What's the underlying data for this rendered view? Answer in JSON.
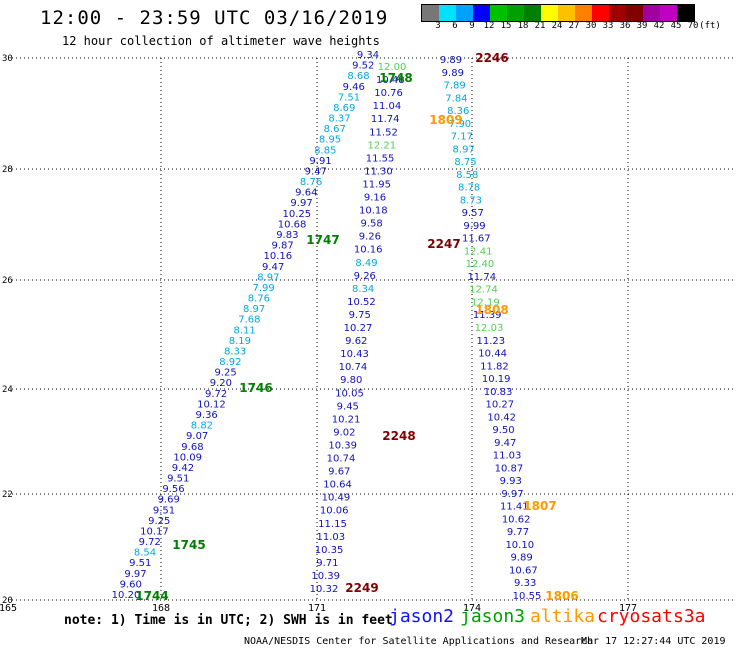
{
  "title": "12:00 - 23:59 UTC 03/16/2019",
  "subtitle": "12 hour collection of altimeter wave heights",
  "colorbar": {
    "colors": [
      "#777777",
      "#00e0ff",
      "#00a0ff",
      "#0000ff",
      "#00c000",
      "#00a000",
      "#008000",
      "#ffff00",
      "#ffc000",
      "#ff8000",
      "#ff0000",
      "#a00000",
      "#800000",
      "#a000a0",
      "#c000c0",
      "#000000"
    ],
    "labels": [
      "3",
      "6",
      "9",
      "12",
      "15",
      "18",
      "21",
      "24",
      "27",
      "30",
      "33",
      "36",
      "39",
      "42",
      "45",
      "70",
      "(ft)"
    ]
  },
  "axes": {
    "lon_labels": [
      "165",
      "168",
      "171",
      "174",
      "177"
    ],
    "lat_labels": [
      "30",
      "28",
      "26",
      "24",
      "22",
      "20"
    ]
  },
  "passes": [
    {
      "time": "1748",
      "color": "#008000"
    },
    {
      "time": "1747",
      "color": "#008000"
    },
    {
      "time": "1746",
      "color": "#008000"
    },
    {
      "time": "1745",
      "color": "#008000"
    },
    {
      "time": "1744",
      "color": "#008000"
    },
    {
      "time": "2246",
      "color": "#800000"
    },
    {
      "time": "2247",
      "color": "#800000"
    },
    {
      "time": "2248",
      "color": "#800000"
    },
    {
      "time": "2249",
      "color": "#800000"
    },
    {
      "time": "1809",
      "color": "#ff9900"
    },
    {
      "time": "1808",
      "color": "#ff9900"
    },
    {
      "time": "1807",
      "color": "#ff9900"
    },
    {
      "time": "1806",
      "color": "#ff9900"
    }
  ],
  "tracks": {
    "jason3_values": [
      "9.34",
      "9.52",
      "8.68",
      "9.46",
      "7.51",
      "8.69",
      "8.37",
      "8.67",
      "8.95",
      "8.85",
      "9.91",
      "9.47",
      "8.76",
      "9.64",
      "9.97",
      "10.25",
      "10.68",
      "9.83",
      "9.87",
      "10.16",
      "9.47",
      "8.97",
      "7.99",
      "8.76",
      "8.97",
      "7.68",
      "8.11",
      "8.19",
      "8.33",
      "8.92",
      "9.25",
      "9.20",
      "9.72",
      "10.12",
      "9.36",
      "8.82",
      "9.07",
      "9.68",
      "10.09",
      "9.42",
      "9.51",
      "9.56",
      "9.69",
      "9.51",
      "9.25",
      "10.17",
      "9.72",
      "8.54",
      "9.51",
      "9.97",
      "9.60",
      "10.20"
    ],
    "s3a_a_values": [
      "12.00",
      "10.48",
      "10.76",
      "11.04",
      "11.74",
      "11.52",
      "12.21",
      "11.55",
      "11.30",
      "11.95",
      "9.16",
      "10.18",
      "9.58",
      "9.26",
      "10.16",
      "8.49",
      "9.26",
      "8.34",
      "10.52",
      "9.75",
      "10.27",
      "9.62",
      "10.43",
      "10.74",
      "9.80",
      "10.05",
      "9.45",
      "10.21",
      "9.02",
      "10.39",
      "10.74",
      "9.67",
      "10.64",
      "10.49",
      "10.06",
      "11.15",
      "11.03",
      "10.35",
      "9.71",
      "10.39",
      "10.32"
    ],
    "cryosat_values": [
      "9.89",
      "9.89",
      "7.89",
      "7.84",
      "8.36",
      "7.90",
      "7.17",
      "8.97",
      "8.75",
      "8.58",
      "8.78",
      "8.73",
      "9.57",
      "9.99",
      "11.67",
      "12.41",
      "12.40",
      "11.74",
      "12.74",
      "12.19",
      "11.39",
      "12.03",
      "11.23",
      "10.44",
      "11.82",
      "10.19",
      "10.83",
      "10.27",
      "10.42",
      "9.50",
      "9.47",
      "11.03",
      "10.87",
      "9.93",
      "9.97",
      "11.41",
      "10.62",
      "9.77",
      "10.10",
      "9.89",
      "10.67",
      "9.33",
      "10.55"
    ]
  },
  "note": "note:  1) Time is in UTC; 2) SWH is in feet",
  "legend": [
    {
      "label": "jason2",
      "color": "#1010ff"
    },
    {
      "label": "jason3",
      "color": "#00a000"
    },
    {
      "label": "altika",
      "color": "#ff9900"
    },
    {
      "label": "cryosat",
      "color": "#ff0000"
    },
    {
      "label": "s3a",
      "color": "#ff0000"
    }
  ],
  "footer": {
    "left": "NOAA/NESDIS Center for Satellite Applications and Research",
    "right": "Mar 17 12:27:44 UTC 2019"
  }
}
